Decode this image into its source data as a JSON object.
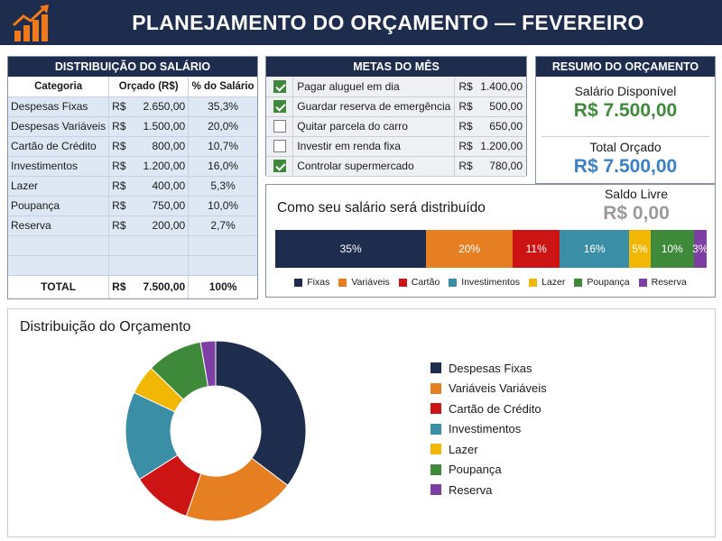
{
  "header": {
    "title": "PLANEJAMENTO DO ORÇAMENTO — FEVEREIRO",
    "logo_icon": "growth-chart-icon"
  },
  "salary_table": {
    "title": "DISTRIBUIÇÃO DO SALÁRIO",
    "columns": [
      "Categoria",
      "Orçado (R$)",
      "% do Salário"
    ],
    "currency": "R$",
    "rows": [
      {
        "category": "Despesas Fixas",
        "amount": "2.650,00",
        "pct": "35,3%"
      },
      {
        "category": "Despesas Variáveis",
        "amount": "1.500,00",
        "pct": "20,0%"
      },
      {
        "category": "Cartão de Crédito",
        "amount": "800,00",
        "pct": "10,7%"
      },
      {
        "category": "Investimentos",
        "amount": "1.200,00",
        "pct": "16,0%"
      },
      {
        "category": "Lazer",
        "amount": "400,00",
        "pct": "5,3%"
      },
      {
        "category": "Poupança",
        "amount": "750,00",
        "pct": "10,0%"
      },
      {
        "category": "Reserva",
        "amount": "200,00",
        "pct": "2,7%"
      }
    ],
    "total": {
      "label": "TOTAL",
      "currency": "R$",
      "amount": "7.500,00",
      "pct": "100%"
    }
  },
  "goals": {
    "title": "METAS DO MÊS",
    "currency": "R$",
    "items": [
      {
        "label": "Pagar aluguel em dia",
        "amount": "1.400,00",
        "checked": true
      },
      {
        "label": "Guardar reserva de emergência",
        "amount": "500,00",
        "checked": true
      },
      {
        "label": "Quitar parcela do carro",
        "amount": "650,00",
        "checked": false
      },
      {
        "label": "Investir em renda fixa",
        "amount": "1.200,00",
        "checked": false
      },
      {
        "label": "Controlar supermercado",
        "amount": "780,00",
        "checked": true
      }
    ]
  },
  "summary": {
    "title": "RESUMO DO ORÇAMENTO",
    "available_label": "Salário Disponível",
    "available_value": "R$ 7.500,00",
    "budget_label": "Total Orçado",
    "budget_value": "R$ 7.500,00",
    "free_label": "Saldo Livre",
    "free_value": "R$ 0,00"
  },
  "distribution_bar": {
    "title": "Como seu salário será distribuído",
    "segments": [
      {
        "label": "35%",
        "value": 35,
        "legend": "Fixas",
        "color": "#1e2c4d"
      },
      {
        "label": "20%",
        "value": 20,
        "legend": "Variáveis",
        "color": "#e67e22"
      },
      {
        "label": "11%",
        "value": 11,
        "legend": "Cartão",
        "color": "#cc1414"
      },
      {
        "label": "16%",
        "value": 16,
        "legend": "Investimentos",
        "color": "#3a8ea6"
      },
      {
        "label": "5%",
        "value": 5,
        "legend": "Lazer",
        "color": "#f2b705"
      },
      {
        "label": "10%",
        "value": 10,
        "legend": "Poupança",
        "color": "#3f8a3a"
      },
      {
        "label": "3%",
        "value": 3,
        "legend": "Reserva",
        "color": "#7e3fa5"
      }
    ]
  },
  "chart_data": {
    "type": "pie",
    "title": "Distribuição do Orçamento",
    "categories": [
      "Despesas Fixas",
      "Variáveis Variáveis",
      "Cartão de Crédito",
      "Investimentos",
      "Lazer",
      "Poupança",
      "Reserva"
    ],
    "values": [
      35.3,
      20.0,
      10.7,
      16.0,
      5.3,
      10.0,
      2.7
    ],
    "colors": [
      "#1e2c4d",
      "#e67e22",
      "#cc1414",
      "#3a8ea6",
      "#f2b705",
      "#3f8a3a",
      "#7e3fa5"
    ],
    "legend_position": "right",
    "donut": true
  }
}
